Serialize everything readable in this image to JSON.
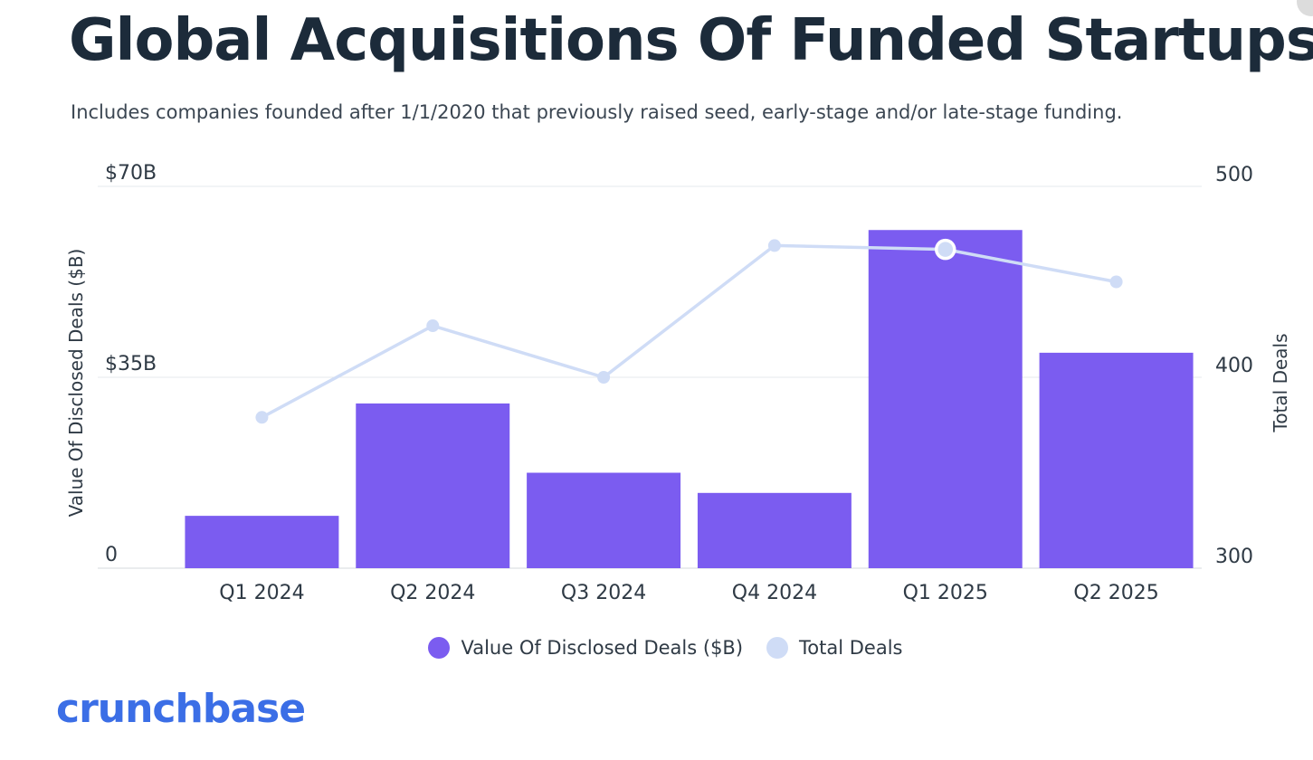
{
  "header": {
    "title": "Global Acquisitions Of Funded Startups",
    "subtitle": "Includes companies founded after 1/1/2020 that previously raised seed, early-stage and/or late-stage funding."
  },
  "logo": {
    "text": "crunchbase",
    "color": "#3b6ee6"
  },
  "chart_data": {
    "type": "bar+line",
    "title": "Global Acquisitions Of Funded Startups",
    "categories": [
      "Q1 2024",
      "Q2 2024",
      "Q3 2024",
      "Q4 2024",
      "Q1 2025",
      "Q2 2025"
    ],
    "series": [
      {
        "name": "Value Of Disclosed Deals ($B)",
        "type": "bar",
        "axis": "left",
        "color": "#7b5cf0",
        "values": [
          9.6,
          30.2,
          17.5,
          13.8,
          62,
          39.5
        ]
      },
      {
        "name": "Total Deals",
        "type": "line",
        "axis": "right",
        "color": "#cfdcf6",
        "values": [
          379,
          427,
          400,
          469,
          467,
          450
        ],
        "highlight_index": 4
      }
    ],
    "left_axis": {
      "label": "Value Of Disclosed Deals ($B)",
      "ylim": [
        0,
        70
      ],
      "ticks": [
        0,
        35,
        70
      ],
      "tick_labels": [
        "0",
        "$35B",
        "$70B"
      ]
    },
    "right_axis": {
      "label": "Total Deals",
      "ylim": [
        300,
        500
      ],
      "ticks": [
        300,
        400,
        500
      ],
      "tick_labels": [
        "300",
        "400",
        "500"
      ]
    },
    "legend": [
      {
        "label": "Value Of Disclosed Deals ($B)",
        "color": "#7b5cf0"
      },
      {
        "label": "Total Deals",
        "color": "#cfdcf6"
      }
    ],
    "legend_position": "bottom-center",
    "grid": true
  }
}
